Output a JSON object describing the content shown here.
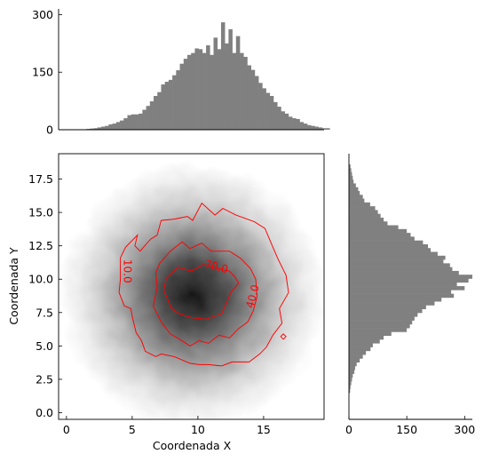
{
  "chart_data": [
    {
      "type": "heatmap",
      "panel": "main-density",
      "xlabel": "Coordenada X",
      "ylabel": "Coordenada Y",
      "xlim": [
        -0.6,
        19.6
      ],
      "ylim": [
        -0.5,
        19.4
      ],
      "xticks": [
        0,
        5,
        10,
        15
      ],
      "xtick_labels": [
        "0",
        "5",
        "10",
        "15"
      ],
      "yticks": [
        0.0,
        2.5,
        5.0,
        7.5,
        10.0,
        12.5,
        15.0,
        17.5
      ],
      "ytick_labels": [
        "0.0",
        "2.5",
        "5.0",
        "7.5",
        "10.0",
        "12.5",
        "15.0",
        "17.5"
      ],
      "density_center": [
        9.6,
        8.8
      ],
      "colormap": "Greys",
      "contour_color": "#ff0000",
      "contours": [
        {
          "level": 10.0,
          "label": "10.0",
          "label_at": [
            4.6,
            10.6
          ],
          "label_angle": 90,
          "points": [
            [
              4.1,
              11.6
            ],
            [
              4.5,
              12.4
            ],
            [
              5.4,
              13.3
            ],
            [
              5.2,
              12.5
            ],
            [
              5.6,
              12.1
            ],
            [
              6.4,
              13.0
            ],
            [
              6.9,
              13.3
            ],
            [
              7.2,
              14.4
            ],
            [
              8.2,
              14.5
            ],
            [
              9.2,
              14.7
            ],
            [
              9.6,
              14.4
            ],
            [
              10.3,
              15.7
            ],
            [
              11.3,
              14.8
            ],
            [
              11.9,
              15.3
            ],
            [
              12.9,
              14.8
            ],
            [
              14.3,
              14.3
            ],
            [
              15.1,
              13.8
            ],
            [
              15.7,
              12.4
            ],
            [
              16.1,
              11.5
            ],
            [
              16.7,
              10.3
            ],
            [
              16.9,
              9.0
            ],
            [
              16.2,
              7.8
            ],
            [
              16.4,
              6.7
            ],
            [
              15.7,
              5.8
            ],
            [
              15.2,
              4.9
            ],
            [
              14.7,
              4.4
            ],
            [
              13.9,
              3.8
            ],
            [
              12.6,
              3.8
            ],
            [
              11.8,
              3.5
            ],
            [
              10.8,
              3.6
            ],
            [
              10.1,
              3.6
            ],
            [
              9.4,
              3.7
            ],
            [
              8.2,
              4.2
            ],
            [
              7.2,
              4.4
            ],
            [
              6.8,
              4.2
            ],
            [
              6.0,
              4.6
            ],
            [
              5.7,
              5.4
            ],
            [
              5.3,
              6.0
            ],
            [
              5.0,
              7.2
            ],
            [
              4.9,
              7.8
            ],
            [
              4.4,
              8.0
            ],
            [
              4.0,
              9.0
            ],
            [
              4.1,
              10.0
            ],
            [
              4.1,
              11.6
            ]
          ]
        },
        {
          "level": 40.0,
          "label": "40.0",
          "label_at": [
            14.2,
            8.7
          ],
          "label_angle": -75,
          "points": [
            [
              6.6,
              8.0
            ],
            [
              6.9,
              9.4
            ],
            [
              6.8,
              10.5
            ],
            [
              7.1,
              11.2
            ],
            [
              7.9,
              12.1
            ],
            [
              8.8,
              12.8
            ],
            [
              9.4,
              12.3
            ],
            [
              10.3,
              12.7
            ],
            [
              11.0,
              12.1
            ],
            [
              12.4,
              12.1
            ],
            [
              13.2,
              11.6
            ],
            [
              14.0,
              10.8
            ],
            [
              14.4,
              10.0
            ],
            [
              14.5,
              8.7
            ],
            [
              14.2,
              7.6
            ],
            [
              13.8,
              6.8
            ],
            [
              13.1,
              6.3
            ],
            [
              12.4,
              5.6
            ],
            [
              11.6,
              5.8
            ],
            [
              10.8,
              5.2
            ],
            [
              10.1,
              5.4
            ],
            [
              9.4,
              5.0
            ],
            [
              8.6,
              5.5
            ],
            [
              7.9,
              5.9
            ],
            [
              7.2,
              6.8
            ],
            [
              6.6,
              8.0
            ]
          ]
        },
        {
          "level": 70.0,
          "label": "70.0",
          "label_at": [
            11.4,
            10.9
          ],
          "label_angle": 15,
          "points": [
            [
              7.4,
              9.2
            ],
            [
              7.6,
              10.1
            ],
            [
              8.5,
              10.9
            ],
            [
              9.5,
              10.6
            ],
            [
              10.4,
              11.1
            ],
            [
              12.4,
              10.6
            ],
            [
              12.8,
              10.2
            ],
            [
              13.1,
              9.7
            ],
            [
              12.5,
              9.0
            ],
            [
              12.2,
              8.3
            ],
            [
              11.8,
              7.4
            ],
            [
              10.6,
              7.0
            ],
            [
              9.6,
              7.1
            ],
            [
              8.6,
              7.4
            ],
            [
              8.0,
              7.8
            ],
            [
              7.4,
              9.2
            ]
          ]
        },
        {
          "level": 10.0,
          "label": "",
          "points": [
            [
              16.5,
              5.5
            ],
            [
              16.7,
              5.7
            ],
            [
              16.5,
              5.9
            ],
            [
              16.3,
              5.7
            ],
            [
              16.5,
              5.5
            ]
          ]
        }
      ]
    },
    {
      "type": "bar",
      "panel": "top-histogram",
      "orientation": "vertical",
      "xlim": [
        -0.6,
        19.6
      ],
      "ylim": [
        0,
        315
      ],
      "yticks": [
        0,
        150,
        300
      ],
      "ytick_labels": [
        "0",
        "150",
        "300"
      ],
      "bin_start": 1.5,
      "bin_width": 0.285,
      "values": [
        2,
        3,
        4,
        6,
        8,
        10,
        14,
        16,
        20,
        24,
        30,
        38,
        40,
        40,
        42,
        52,
        62,
        74,
        88,
        98,
        118,
        125,
        130,
        142,
        155,
        172,
        185,
        195,
        200,
        212,
        210,
        200,
        220,
        195,
        240,
        210,
        280,
        225,
        262,
        200,
        244,
        200,
        190,
        168,
        156,
        140,
        122,
        108,
        96,
        88,
        72,
        60,
        48,
        42,
        34,
        30,
        28,
        20,
        16,
        12,
        10,
        8,
        6,
        4,
        4
      ]
    },
    {
      "type": "bar",
      "panel": "right-histogram",
      "orientation": "horizontal",
      "xlim": [
        0,
        320
      ],
      "ylim": [
        -0.5,
        19.4
      ],
      "xticks": [
        0,
        150,
        300
      ],
      "xtick_labels": [
        "0",
        "150",
        "300"
      ],
      "bin_start": 1.5,
      "bin_width": 0.285,
      "values": [
        3,
        4,
        6,
        8,
        10,
        14,
        16,
        20,
        28,
        36,
        44,
        56,
        62,
        80,
        90,
        110,
        150,
        158,
        164,
        170,
        178,
        190,
        200,
        222,
        240,
        272,
        265,
        300,
        280,
        310,
        320,
        285,
        268,
        262,
        245,
        250,
        230,
        212,
        205,
        192,
        170,
        160,
        150,
        128,
        100,
        90,
        82,
        75,
        68,
        55,
        40,
        36,
        28,
        24,
        18,
        12,
        10,
        8,
        6,
        4
      ]
    }
  ]
}
